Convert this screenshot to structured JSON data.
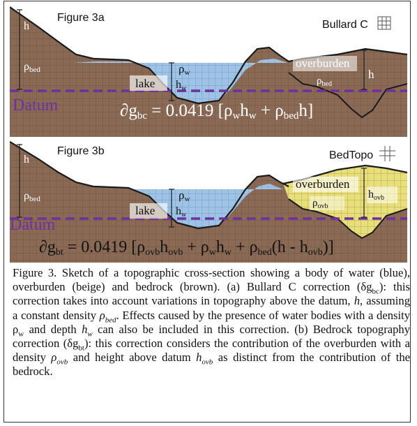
{
  "panel_a": {
    "title": "Figure 3a",
    "method": "Bullard C",
    "labels": {
      "h_left": "h",
      "rho_bed_left": "ρ",
      "rho_bed_left_sub": "bed",
      "rho_w": "ρ",
      "rho_w_sub": "w",
      "h_w": "h",
      "h_w_sub": "w",
      "lake": "lake",
      "overburden": "overburden",
      "rho_bed_right": "ρ",
      "rho_bed_right_sub": "bed",
      "h_right": "h",
      "datum": "Datum"
    },
    "equation": {
      "lhs": "∂g",
      "lhs_sub": "bc",
      "eq": " = 0.0419 [ρ",
      "t1_sub": "w",
      "t1b": "h",
      "t1b_sub": "w",
      "plus": " + ρ",
      "t2_sub": "bed",
      "t2b": "h]"
    }
  },
  "panel_b": {
    "title": "Figure 3b",
    "method": "BedTopo",
    "labels": {
      "h_left": "h",
      "rho_bed_left": "ρ",
      "rho_bed_left_sub": "bed",
      "rho_w": "ρ",
      "rho_w_sub": "w",
      "h_w": "h",
      "h_w_sub": "w",
      "lake": "lake",
      "overburden": "overburden",
      "rho_ovb": "ρ",
      "rho_ovb_sub": "ovb",
      "h_ovb": "h",
      "h_ovb_sub": "ovb",
      "datum": "Datum"
    },
    "equation": {
      "lhs": "∂g",
      "lhs_sub": "bt",
      "eq": " = 0.0419 [ρ",
      "t1_sub": "ovb",
      "t1b": "h",
      "t1b_sub": "ovb",
      "plus1": " + ρ",
      "t2_sub": "w",
      "t2b": "h",
      "t2b_sub": "w",
      "plus2": " + ρ",
      "t3_sub": "bed",
      "t3b": "(h - h",
      "t3b_sub": "ovb",
      "close": ")]"
    }
  },
  "caption": {
    "p1": "Figure 3. Sketch of a topographic cross-section showing a body of water (blue), overburden (beige) and bedrock (brown). (a) Bullard C correction (δg",
    "sub_bc": "bc",
    "p2": "): this correction takes into account variations in topography above the datum, ",
    "h1": "h",
    "p3": ", assuming a constant density ",
    "rho_bed": "ρ",
    "rho_bed_sub": "bed",
    "p4": ". Effects caused by the presence of water bodies with a density ρ",
    "rho_w_sub": "w",
    "p5": " and depth ",
    "h_w": "h",
    "h_w_sub": "w",
    "p6": " can also be included in this correction. (b) Bedrock topography correction (δg",
    "sub_bt": "bt",
    "p7": "): this correction considers the contribution of the overburden with a density ",
    "rho_ovb": "ρ",
    "rho_ovb_sub": "ovb",
    "p8": " and height above datum ",
    "h_ovb": "h",
    "h_ovb_sub": "ovb",
    "p9": " as distinct from the contribution of the bedrock."
  },
  "colors": {
    "bedrock": "#8a6a55",
    "water": "#9dc3e6",
    "overburden_a": "#8a6a55",
    "overburden_b": "#e9df7a",
    "datum": "#7030a0",
    "grid": "#5a4638"
  }
}
